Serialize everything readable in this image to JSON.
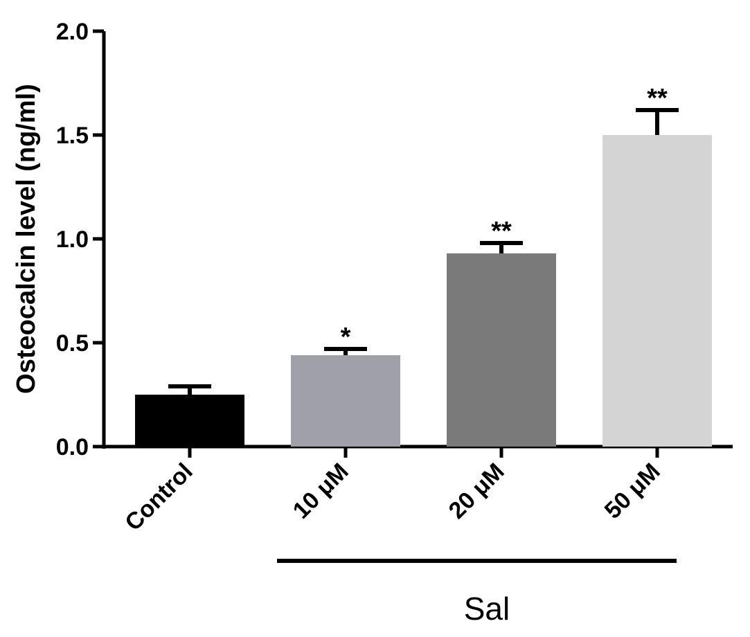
{
  "chart_data": {
    "type": "bar",
    "title": "",
    "xlabel": "",
    "ylabel": "Osteocalcin level (ng/ml)",
    "ylim": [
      0,
      2.0
    ],
    "yticks": [
      0.0,
      0.5,
      1.0,
      1.5,
      2.0
    ],
    "ytick_labels": [
      "0.0",
      "0.5",
      "1.0",
      "1.5",
      "2.0"
    ],
    "categories": [
      "Control",
      "10 μM",
      "20 μM",
      "50 μM"
    ],
    "values": [
      0.25,
      0.44,
      0.93,
      1.5
    ],
    "errors": [
      0.04,
      0.03,
      0.05,
      0.12
    ],
    "significance": [
      "",
      "*",
      "**",
      "**"
    ],
    "colors": [
      "#000000",
      "#a0a0a8",
      "#7a7a7a",
      "#d4d4d4"
    ],
    "group_label": "Sal",
    "group_categories": [
      "10 μM",
      "20 μM",
      "50 μM"
    ],
    "grid": false,
    "legend": "none"
  }
}
